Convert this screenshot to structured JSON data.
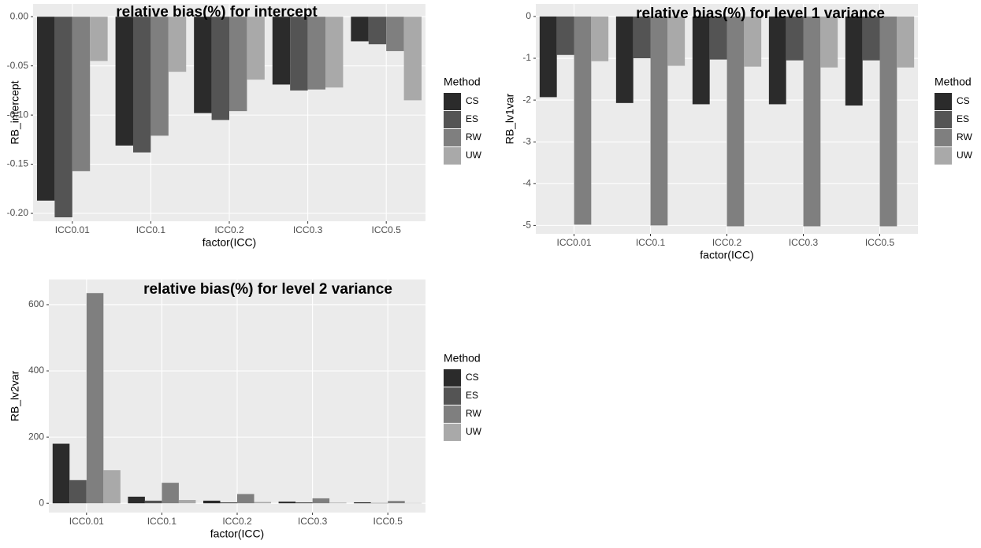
{
  "chart_data": [
    {
      "type": "bar",
      "title": "relative bias(%) for intercept",
      "x_label": "factor(ICC)",
      "y_label": "RB_intercept",
      "categories": [
        "ICC0.01",
        "ICC0.1",
        "ICC0.2",
        "ICC0.3",
        "ICC0.5"
      ],
      "legend_title": "Method",
      "series": [
        {
          "name": "CS",
          "color": "#2b2b2b",
          "values": [
            -0.187,
            -0.131,
            -0.098,
            -0.069,
            -0.025
          ]
        },
        {
          "name": "ES",
          "color": "#545454",
          "values": [
            -0.204,
            -0.138,
            -0.105,
            -0.075,
            -0.028
          ]
        },
        {
          "name": "RW",
          "color": "#7f7f7f",
          "values": [
            -0.157,
            -0.121,
            -0.096,
            -0.074,
            -0.035
          ]
        },
        {
          "name": "UW",
          "color": "#a9a9a9",
          "values": [
            -0.045,
            -0.056,
            -0.064,
            -0.072,
            -0.085
          ]
        }
      ],
      "ylim": [
        -0.208,
        0.013
      ],
      "yticks": [
        {
          "value": 0,
          "label": "0.00"
        },
        {
          "value": -0.05,
          "label": "-0.05"
        },
        {
          "value": -0.1,
          "label": "-0.10"
        },
        {
          "value": -0.15,
          "label": "-0.15"
        },
        {
          "value": -0.2,
          "label": "-0.20"
        }
      ],
      "grid": true
    },
    {
      "type": "bar",
      "title": "relative bias(%) for level 1 variance",
      "x_label": "factor(ICC)",
      "y_label": "RB_lv1var",
      "categories": [
        "ICC0.01",
        "ICC0.1",
        "ICC0.2",
        "ICC0.3",
        "ICC0.5"
      ],
      "legend_title": "Method",
      "series": [
        {
          "name": "CS",
          "color": "#2b2b2b",
          "values": [
            -1.93,
            -2.07,
            -2.1,
            -2.1,
            -2.13
          ]
        },
        {
          "name": "ES",
          "color": "#545454",
          "values": [
            -0.92,
            -1.0,
            -1.03,
            -1.05,
            -1.05
          ]
        },
        {
          "name": "RW",
          "color": "#7f7f7f",
          "values": [
            -4.98,
            -5.0,
            -5.02,
            -5.02,
            -5.02
          ]
        },
        {
          "name": "UW",
          "color": "#a9a9a9",
          "values": [
            -1.07,
            -1.18,
            -1.2,
            -1.22,
            -1.22
          ]
        }
      ],
      "ylim": [
        -5.2,
        0.3
      ],
      "yticks": [
        0,
        -1,
        -2,
        -3,
        -4,
        -5
      ],
      "grid": true
    },
    {
      "type": "bar",
      "title": "relative bias(%) for level 2 variance",
      "x_label": "factor(ICC)",
      "y_label": "RB_lv2var",
      "categories": [
        "ICC0.01",
        "ICC0.1",
        "ICC0.2",
        "ICC0.3",
        "ICC0.5"
      ],
      "legend_title": "Method",
      "series": [
        {
          "name": "CS",
          "color": "#2b2b2b",
          "values": [
            180,
            20,
            8,
            5,
            3
          ]
        },
        {
          "name": "ES",
          "color": "#545454",
          "values": [
            70,
            8,
            3,
            3,
            1
          ]
        },
        {
          "name": "RW",
          "color": "#7f7f7f",
          "values": [
            635,
            62,
            28,
            15,
            7
          ]
        },
        {
          "name": "UW",
          "color": "#a9a9a9",
          "values": [
            100,
            10,
            4,
            2,
            1
          ]
        }
      ],
      "ylim": [
        -28,
        676
      ],
      "yticks": [
        0,
        200,
        400,
        600
      ],
      "grid": true
    }
  ]
}
